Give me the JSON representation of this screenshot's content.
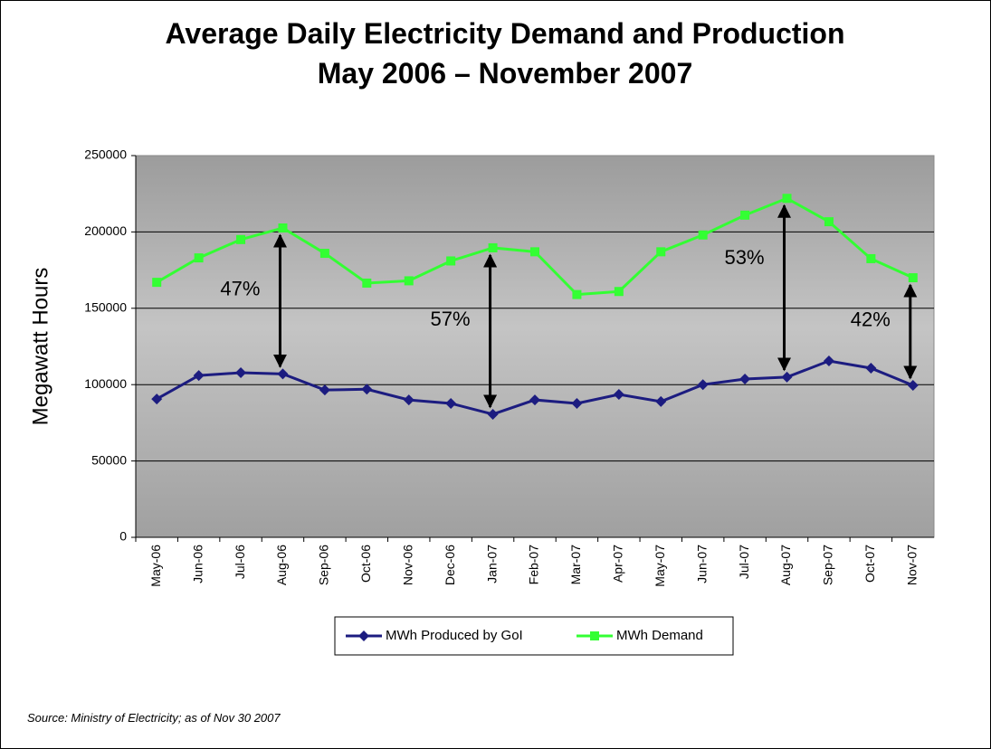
{
  "chart_data": {
    "type": "line",
    "title": "Average Daily Electricity Demand and Production",
    "subtitle": "May 2006 – November 2007",
    "y_label": "Megawatt Hours",
    "source": "Source:  Ministry of Electricity; as of Nov 30 2007",
    "categories": [
      "May-06",
      "Jun-06",
      "Jul-06",
      "Aug-06",
      "Sep-06",
      "Oct-06",
      "Nov-06",
      "Dec-06",
      "Jan-07",
      "Feb-07",
      "Mar-07",
      "Apr-07",
      "May-07",
      "Jun-07",
      "Jul-07",
      "Aug-07",
      "Sep-07",
      "Oct-07",
      "Nov-07"
    ],
    "series": [
      {
        "name": "MWh Produced by GoI",
        "color": "#1c1c80",
        "marker": "diamond",
        "values": [
          90600,
          106000,
          107800,
          107000,
          96500,
          97000,
          90000,
          87700,
          80600,
          90000,
          87700,
          93600,
          88900,
          100000,
          103700,
          104900,
          115500,
          110800,
          99500
        ]
      },
      {
        "name": "MWh Demand",
        "color": "#33ff33",
        "marker": "square",
        "values": [
          167000,
          183000,
          195000,
          202600,
          186000,
          166500,
          168000,
          181000,
          189600,
          187000,
          159000,
          161000,
          187000,
          198000,
          211000,
          222000,
          206700,
          182500,
          170000
        ]
      }
    ],
    "annotations": [
      {
        "text": "47%",
        "category": "Aug-06"
      },
      {
        "text": "57%",
        "category": "Jan-07"
      },
      {
        "text": "53%",
        "category": "Aug-07"
      },
      {
        "text": "42%",
        "category": "Nov-07"
      }
    ],
    "ylim": [
      0,
      250000
    ],
    "yticks": [
      0,
      50000,
      100000,
      150000,
      200000,
      250000
    ],
    "grid": true,
    "legend": "bottom"
  }
}
